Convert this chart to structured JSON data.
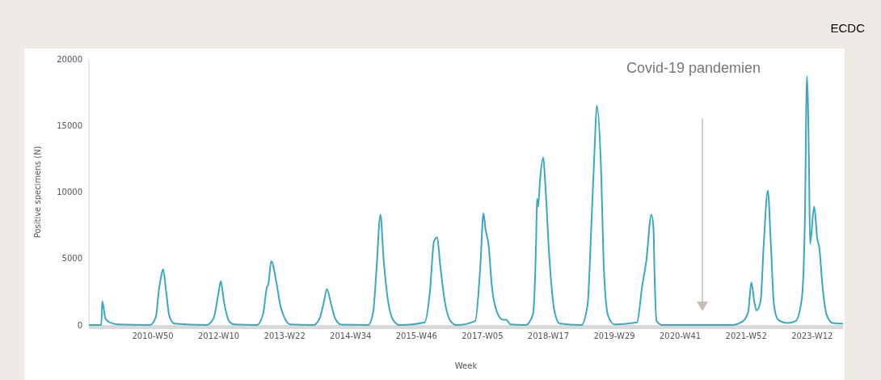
{
  "chart_data": {
    "type": "line",
    "xlabel": "Week",
    "ylabel": "Positive specimens (N)",
    "annotations": [
      "ECDC",
      "Covid-19 pandemien"
    ],
    "xlim": [
      "2009-10-05",
      "2023-10-16"
    ],
    "ylim": [
      0,
      20000
    ],
    "yticks": [
      0,
      5000,
      10000,
      15000,
      20000
    ],
    "xticks": [
      {
        "value": "2010-12-13",
        "label": "2010-W50"
      },
      {
        "value": "2012-03-05",
        "label": "2012-W10"
      },
      {
        "value": "2013-05-27",
        "label": "2013-W22"
      },
      {
        "value": "2014-08-18",
        "label": "2014-W34"
      },
      {
        "value": "2015-11-09",
        "label": "2015-W46"
      },
      {
        "value": "2017-01-30",
        "label": "2017-W05"
      },
      {
        "value": "2018-04-23",
        "label": "2018-W17"
      },
      {
        "value": "2019-07-15",
        "label": "2019-W29"
      },
      {
        "value": "2020-10-05",
        "label": "2020-W41"
      },
      {
        "value": "2021-12-27",
        "label": "2021-W52"
      },
      {
        "value": "2023-03-20",
        "label": "2023-W12"
      }
    ],
    "grid": false,
    "marker": "none",
    "line_style": "solid",
    "series": [
      {
        "color": "#3aa8c1",
        "x": [
          "2009-10-05",
          "2009-12-28",
          "2010-01-04",
          "2010-01-25",
          "2010-02-22",
          "2010-04-19",
          "2010-11-22",
          "2011-01-03",
          "2011-01-24",
          "2011-02-07",
          "2011-02-21",
          "2011-03-14",
          "2011-04-04",
          "2011-05-09",
          "2011-12-12",
          "2012-01-30",
          "2012-03-05",
          "2012-03-19",
          "2012-04-09",
          "2012-05-14",
          "2012-06-18",
          "2012-11-19",
          "2012-12-31",
          "2013-01-28",
          "2013-02-04",
          "2013-02-25",
          "2013-04-01",
          "2013-04-29",
          "2013-05-20",
          "2013-07-01",
          "2013-12-09",
          "2014-01-20",
          "2014-02-17",
          "2014-03-10",
          "2014-04-07",
          "2014-05-05",
          "2014-06-16",
          "2014-12-15",
          "2015-01-19",
          "2015-02-09",
          "2015-03-09",
          "2015-03-30",
          "2015-04-27",
          "2015-06-08",
          "2015-07-20",
          "2016-01-04",
          "2016-02-08",
          "2016-03-07",
          "2016-03-28",
          "2016-04-18",
          "2016-05-16",
          "2016-06-27",
          "2016-08-08",
          "2016-12-12",
          "2017-01-16",
          "2017-02-06",
          "2017-02-20",
          "2017-03-13",
          "2017-04-03",
          "2017-05-08",
          "2017-06-19",
          "2017-07-10",
          "2017-08-07",
          "2017-11-20",
          "2018-01-08",
          "2018-01-29",
          "2018-02-05",
          "2018-02-12",
          "2018-02-26",
          "2018-03-19",
          "2018-04-02",
          "2018-04-30",
          "2018-06-04",
          "2018-07-09",
          "2018-12-03",
          "2019-01-14",
          "2019-02-11",
          "2019-03-04",
          "2019-03-18",
          "2019-04-15",
          "2019-05-06",
          "2019-06-03",
          "2019-07-15",
          "2019-12-16",
          "2020-01-20",
          "2020-02-17",
          "2020-03-23",
          "2020-04-06",
          "2020-04-13",
          "2020-04-27",
          "2020-06-08",
          "2021-09-20",
          "2021-12-06",
          "2022-01-10",
          "2022-01-31",
          "2022-02-21",
          "2022-03-07",
          "2022-04-04",
          "2022-04-25",
          "2022-05-23",
          "2022-06-13",
          "2022-07-04",
          "2022-08-01",
          "2022-10-03",
          "2022-11-28",
          "2023-01-09",
          "2023-01-30",
          "2023-02-13",
          "2023-02-27",
          "2023-03-06",
          "2023-04-03",
          "2023-04-24",
          "2023-05-08",
          "2023-05-29",
          "2023-06-26",
          "2023-08-07",
          "2023-10-16"
        ],
        "values": [
          0,
          0,
          1800,
          500,
          200,
          50,
          0,
          600,
          2700,
          3600,
          4200,
          2500,
          700,
          100,
          0,
          500,
          2500,
          3300,
          1800,
          300,
          50,
          0,
          800,
          2900,
          3000,
          4800,
          3200,
          1400,
          700,
          50,
          0,
          500,
          1700,
          2700,
          1600,
          500,
          30,
          0,
          1000,
          4000,
          8300,
          5000,
          2000,
          300,
          0,
          200,
          2500,
          6300,
          6600,
          4500,
          2000,
          300,
          0,
          300,
          4500,
          8400,
          7200,
          6000,
          3000,
          1000,
          400,
          400,
          50,
          0,
          800,
          6000,
          9500,
          8900,
          11000,
          12600,
          10600,
          5000,
          1000,
          100,
          0,
          1500,
          8000,
          13500,
          16500,
          12000,
          4000,
          700,
          50,
          200,
          2900,
          4800,
          8300,
          7300,
          4000,
          300,
          0,
          0,
          300,
          1000,
          3200,
          1700,
          1100,
          1800,
          6000,
          10100,
          6000,
          1500,
          400,
          150,
          300,
          2000,
          8000,
          18700,
          12000,
          6100,
          8900,
          6500,
          5800,
          3000,
          800,
          150,
          100
        ]
      }
    ]
  }
}
